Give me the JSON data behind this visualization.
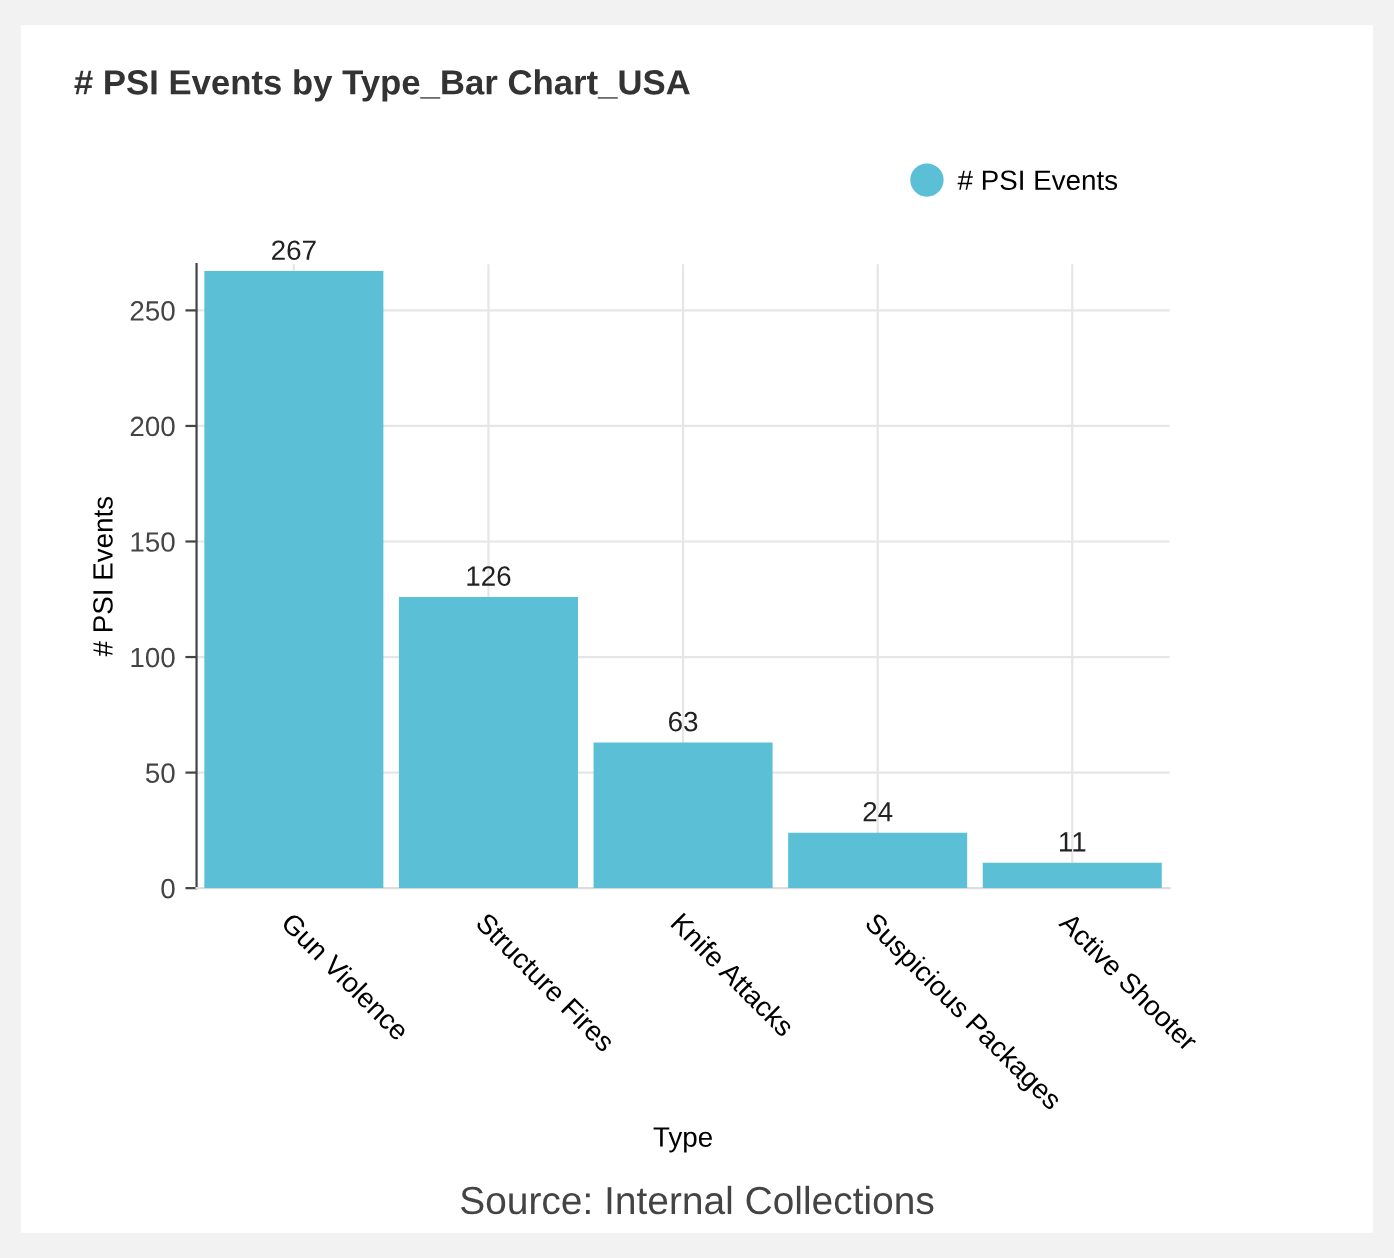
{
  "chart_data": {
    "type": "bar",
    "title": "# PSI Events by Type_Bar Chart_USA",
    "categories": [
      "Gun Violence",
      "Structure Fires",
      "Knife Attacks",
      "Suspicious Packages",
      "Active Shooter"
    ],
    "series": [
      {
        "name": "# PSI Events",
        "color": "#5bbfd6",
        "values": [
          267,
          126,
          63,
          24,
          11
        ]
      }
    ],
    "xlabel": "Type",
    "ylabel": "# PSI Events",
    "ylim": [
      0,
      270
    ],
    "yticks": [
      0,
      50,
      100,
      150,
      200,
      250
    ],
    "grid": true,
    "legend": "top right",
    "data_labels": true,
    "annotations": [
      "Source: Internal Collections"
    ]
  }
}
